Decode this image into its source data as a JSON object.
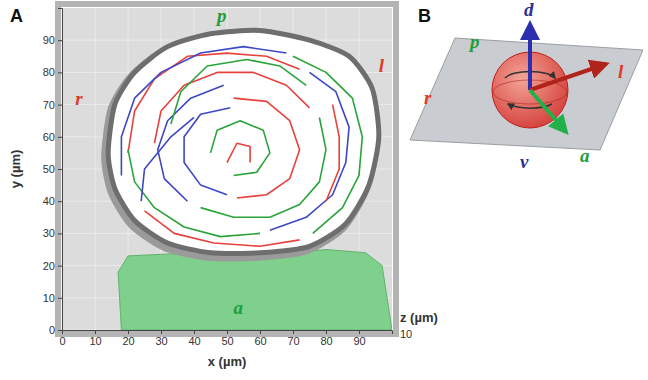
{
  "chart_data": {
    "type": "line",
    "panel": "A",
    "xlabel": "x (µm)",
    "ylabel": "y (µm)",
    "zlabel": "z (µm)",
    "zticks": [
      10
    ],
    "xlim": [
      0,
      100
    ],
    "ylim": [
      0,
      100
    ],
    "xticks": [
      0,
      10,
      20,
      30,
      40,
      50,
      60,
      70,
      80,
      90
    ],
    "yticks": [
      0,
      10,
      20,
      30,
      40,
      50,
      60,
      70,
      80,
      90
    ],
    "grid": true,
    "cell_outline": {
      "x": [
        14,
        16,
        22,
        32,
        45,
        60,
        75,
        87,
        94,
        96,
        93,
        86,
        75,
        60,
        45,
        32,
        22,
        16
      ],
      "y": [
        55,
        70,
        80,
        88,
        92,
        93,
        90,
        85,
        75,
        60,
        45,
        33,
        26,
        24,
        24,
        27,
        34,
        44
      ]
    },
    "neighbor_cell": {
      "x": [
        18,
        17,
        20,
        40,
        60,
        80,
        92,
        97,
        100
      ],
      "y": [
        0,
        18,
        23,
        24,
        23,
        25,
        24,
        20,
        0
      ]
    },
    "annotations": [
      {
        "text": "p",
        "color": "#1f9e3a"
      },
      {
        "text": "l",
        "color": "#e03a2a"
      },
      {
        "text": "r",
        "color": "#e03a2a"
      },
      {
        "text": "a",
        "color": "#1f9e3a"
      }
    ],
    "series": [
      {
        "color": "#e8413c",
        "x": [
          20,
          22,
          28,
          38,
          50,
          62,
          72
        ],
        "values": [
          55,
          68,
          78,
          85,
          86,
          85,
          81
        ]
      },
      {
        "color": "#3d47c4",
        "x": [
          75,
          83,
          87,
          86,
          82,
          74,
          63
        ],
        "values": [
          80,
          74,
          63,
          52,
          42,
          35,
          31
        ]
      },
      {
        "color": "#2aa33a",
        "x": [
          60,
          48,
          37,
          28,
          22,
          20
        ],
        "values": [
          30,
          29,
          32,
          38,
          46,
          56
        ]
      },
      {
        "color": "#e8413c",
        "x": [
          28,
          30,
          37,
          47,
          58,
          68,
          75
        ],
        "values": [
          58,
          68,
          76,
          80,
          80,
          76,
          69
        ]
      },
      {
        "color": "#2aa33a",
        "x": [
          78,
          80,
          78,
          72,
          63,
          52,
          42
        ],
        "values": [
          66,
          56,
          46,
          39,
          35,
          35,
          38
        ]
      },
      {
        "color": "#3d47c4",
        "x": [
          38,
          31,
          29,
          32,
          39,
          49
        ],
        "values": [
          40,
          47,
          56,
          65,
          72,
          76
        ]
      },
      {
        "color": "#e8413c",
        "x": [
          52,
          62,
          69,
          72,
          69,
          62,
          53
        ],
        "values": [
          72,
          71,
          65,
          56,
          47,
          42,
          41
        ]
      },
      {
        "color": "#3d47c4",
        "x": [
          50,
          42,
          37,
          37,
          42,
          51
        ],
        "values": [
          42,
          45,
          52,
          60,
          67,
          69
        ]
      },
      {
        "color": "#2aa33a",
        "x": [
          45,
          47,
          54,
          61,
          63,
          59,
          52
        ],
        "values": [
          55,
          62,
          65,
          62,
          55,
          49,
          48
        ]
      },
      {
        "color": "#e8413c",
        "x": [
          50,
          53,
          57,
          57
        ],
        "values": [
          52,
          58,
          57,
          52
        ]
      },
      {
        "color": "#3d47c4",
        "x": [
          18,
          18,
          22,
          30,
          42,
          55,
          68
        ],
        "values": [
          48,
          60,
          72,
          80,
          86,
          88,
          86
        ]
      },
      {
        "color": "#2aa33a",
        "x": [
          70,
          80,
          88,
          91,
          90,
          85,
          76
        ],
        "values": [
          85,
          80,
          72,
          60,
          48,
          38,
          30
        ]
      },
      {
        "color": "#e8413c",
        "x": [
          72,
          60,
          46,
          34,
          25
        ],
        "values": [
          28,
          26,
          27,
          30,
          37
        ]
      },
      {
        "color": "#3d47c4",
        "x": [
          24,
          25,
          33,
          40
        ],
        "values": [
          40,
          50,
          60,
          66
        ]
      },
      {
        "color": "#2aa33a",
        "x": [
          33,
          36,
          44,
          56,
          66,
          74
        ],
        "values": [
          64,
          74,
          82,
          84,
          82,
          76
        ]
      },
      {
        "color": "#e8413c",
        "x": [
          82,
          84,
          84,
          80
        ],
        "values": [
          70,
          60,
          50,
          40
        ]
      }
    ]
  },
  "panel_b": {
    "letter": "B",
    "labels": [
      {
        "text": "d",
        "color": "#2b2f8f"
      },
      {
        "text": "p",
        "color": "#1f9e3a"
      },
      {
        "text": "l",
        "color": "#e03a2a"
      },
      {
        "text": "r",
        "color": "#e03a2a"
      },
      {
        "text": "v",
        "color": "#2b2f8f"
      },
      {
        "text": "a",
        "color": "#1f9e3a"
      }
    ]
  }
}
